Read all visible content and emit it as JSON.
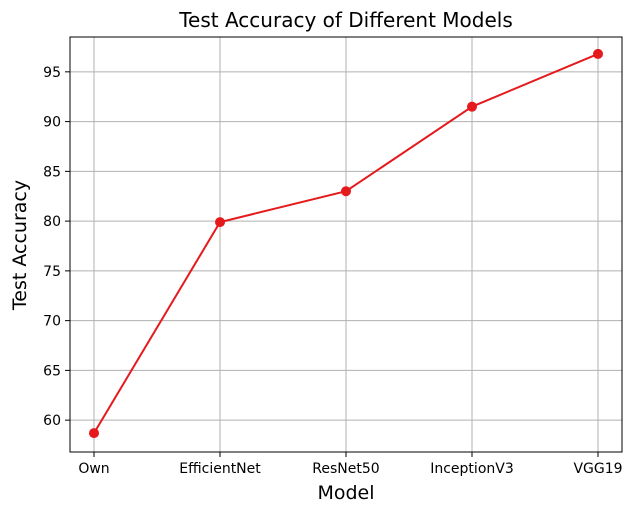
{
  "chart_data": {
    "type": "line",
    "title": "Test Accuracy of Different Models",
    "xlabel": "Model",
    "ylabel": "Test Accuracy",
    "categories": [
      "Own",
      "EfficientNet",
      "ResNet50",
      "InceptionV3",
      "VGG19"
    ],
    "series": [
      {
        "values": [
          58.7,
          79.9,
          83.0,
          91.5,
          96.8
        ],
        "color": "#e41a1c",
        "marker": "circle"
      }
    ],
    "yticks": [
      60,
      65,
      70,
      75,
      80,
      85,
      90,
      95
    ],
    "ylim": [
      56.8,
      98.5
    ],
    "grid": true,
    "legend": "none"
  }
}
